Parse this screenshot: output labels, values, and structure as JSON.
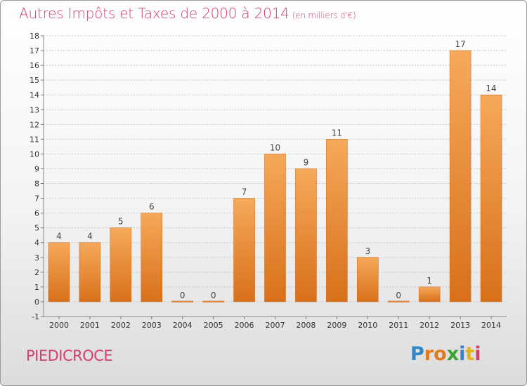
{
  "title": "Autres Impôts et Taxes de 2000 à 2014",
  "unit": "(en milliers d'€)",
  "commune": "PIEDICROCE",
  "logo": {
    "text": "Proxiti",
    "letters": [
      "P",
      "r",
      "o",
      "x",
      "i",
      "t",
      "i"
    ],
    "colors": [
      "#2f86c8",
      "#e07a1f",
      "#e07a1f",
      "#3aa535",
      "#2f86c8",
      "#e2b51a",
      "#d2406e"
    ]
  },
  "colors": {
    "bar_top": "#f5a95a",
    "bar_bottom": "#d9701a",
    "accent": "#d2406e",
    "grid": "#c8c8c8",
    "axis_text": "#333333"
  },
  "chart_data": {
    "type": "bar",
    "title": "Autres Impôts et Taxes de 2000 à 2014",
    "categories": [
      "2000",
      "2001",
      "2002",
      "2003",
      "2004",
      "2005",
      "2006",
      "2007",
      "2008",
      "2009",
      "2010",
      "2011",
      "2012",
      "2013",
      "2014"
    ],
    "values": [
      4,
      4,
      5,
      6,
      0,
      0,
      7,
      10,
      9,
      11,
      3,
      0,
      1,
      17,
      14
    ],
    "ylim": [
      -1,
      18
    ],
    "yticks": [
      -1,
      0,
      1,
      2,
      3,
      4,
      5,
      6,
      7,
      8,
      9,
      10,
      11,
      12,
      13,
      14,
      15,
      16,
      17,
      18
    ],
    "grid": true,
    "xlabel": "",
    "ylabel": ""
  }
}
